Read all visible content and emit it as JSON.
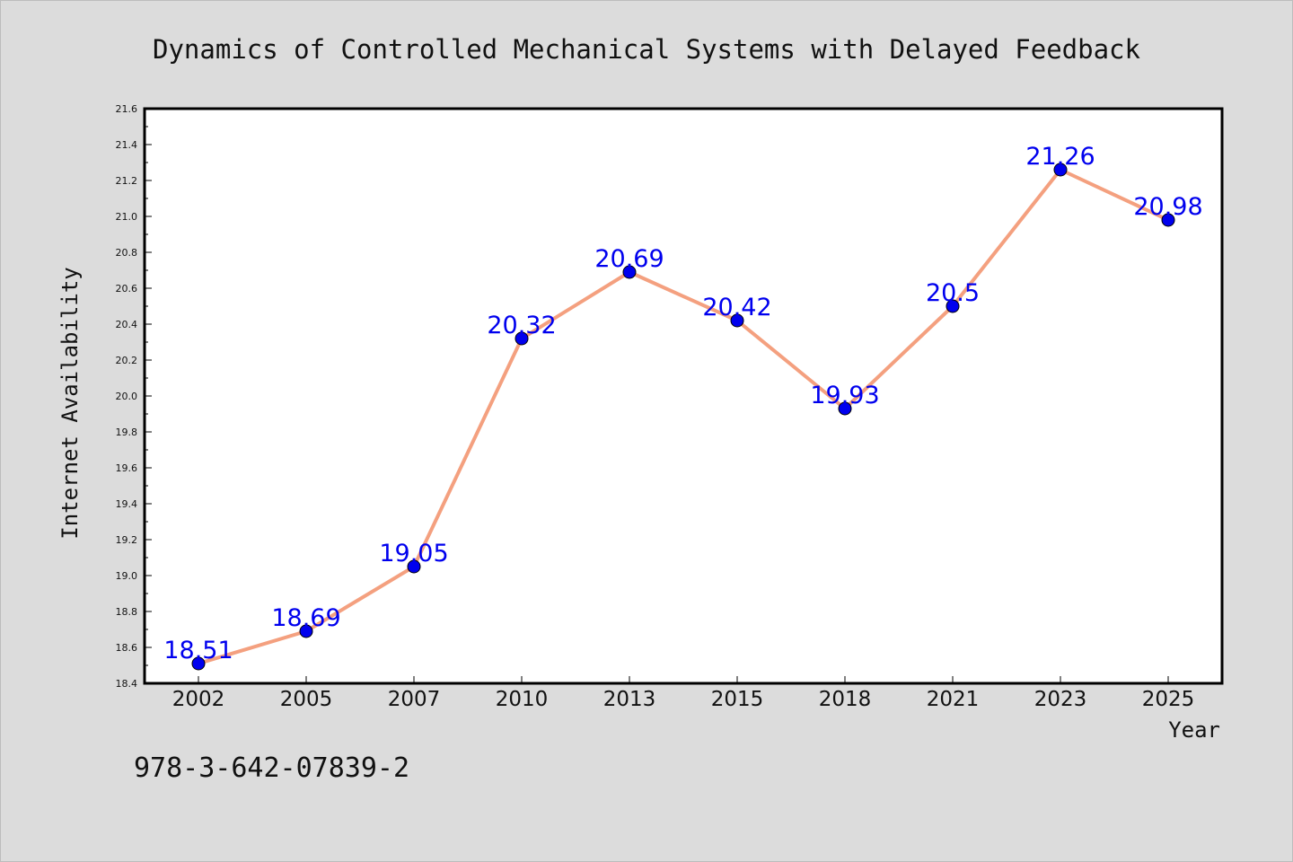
{
  "chart_data": {
    "type": "line",
    "title": "Dynamics of Controlled Mechanical Systems with Delayed Feedback",
    "xlabel": "Year",
    "ylabel": "Internet Availability",
    "categories": [
      "2002",
      "2005",
      "2007",
      "2010",
      "2013",
      "2015",
      "2018",
      "2021",
      "2023",
      "2025"
    ],
    "series": [
      {
        "values": [
          18.51,
          18.69,
          19.05,
          20.32,
          20.69,
          20.42,
          19.93,
          20.5,
          21.26,
          20.98
        ],
        "data_labels": [
          "18.51",
          "18.69",
          "19.05",
          "20.32",
          "20.69",
          "20.42",
          "19.93",
          "20.5",
          "21.26",
          "20.98"
        ],
        "line_color": "#f4a07f",
        "marker_color": "#0000ee"
      }
    ],
    "ylim": [
      18.4,
      21.6
    ],
    "yticks": [
      "18.4",
      "18.6",
      "18.8",
      "19.0",
      "19.2",
      "19.4",
      "19.6",
      "19.8",
      "20.0",
      "20.2",
      "20.4",
      "20.6",
      "20.8",
      "21.0",
      "21.2",
      "21.4",
      "21.6"
    ],
    "grid": false,
    "legend": "none",
    "label_color": "#0000ee"
  },
  "footer": {
    "identifier": "978-3-642-07839-2"
  }
}
